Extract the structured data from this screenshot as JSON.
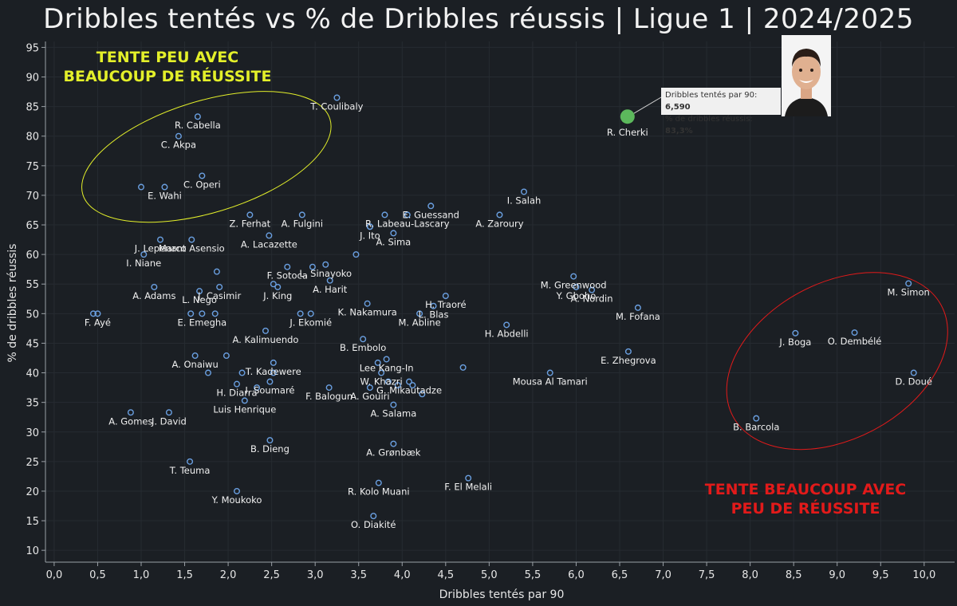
{
  "chart_data": {
    "type": "scatter",
    "title": "Dribbles tentés vs % de Dribbles réussis | Ligue 1 | 2024/2025",
    "xlabel": "Dribbles tentés par 90",
    "ylabel": "% de dribbles réussis",
    "xlim": [
      -0.1,
      10.35
    ],
    "ylim": [
      8,
      96
    ],
    "x_ticks": [
      "0,0",
      "0,5",
      "1,0",
      "1,5",
      "2,0",
      "2,5",
      "3,0",
      "3,5",
      "4,0",
      "4,5",
      "5,0",
      "5,5",
      "6,0",
      "6,5",
      "7,0",
      "7,5",
      "8,0",
      "8,5",
      "9,0",
      "9,5",
      "10,0"
    ],
    "y_ticks": [
      "10",
      "15",
      "20",
      "25",
      "30",
      "35",
      "40",
      "45",
      "50",
      "55",
      "60",
      "65",
      "70",
      "75",
      "80",
      "85",
      "90",
      "95"
    ],
    "grid": true,
    "highlight": {
      "name": "R. Cherki",
      "x": 6.59,
      "y": 83.3,
      "color": "#5cb85c",
      "callout_line1_label": "Dribbles tentés par 90: ",
      "callout_line1_value": "6,590",
      "callout_line2_label": "% de dribbles réussis: ",
      "callout_line2_value": "83,3%"
    },
    "zones": [
      {
        "label_line1": "TENTE PEU AVEC",
        "label_line2": "BEAUCOUP DE RÉUSSITE",
        "color": "#e3ef2a"
      },
      {
        "label_line1": "TENTE BEAUCOUP AVEC",
        "label_line2": "PEU DE RÉUSSITE",
        "color": "#e21a1a"
      }
    ],
    "marker_color": "#6a9fe0",
    "points": [
      {
        "name": "T. Coulibaly",
        "x": 3.25,
        "y": 86.5
      },
      {
        "name": "R. Cabella",
        "x": 1.65,
        "y": 83.3
      },
      {
        "name": "C. Akpa",
        "x": 1.43,
        "y": 80.0
      },
      {
        "name": "C. Operi",
        "x": 1.7,
        "y": 73.3
      },
      {
        "name": "",
        "x": 1.0,
        "y": 71.4
      },
      {
        "name": "E. Wahi",
        "x": 1.27,
        "y": 71.4
      },
      {
        "name": "Z. Ferhat",
        "x": 2.25,
        "y": 66.7
      },
      {
        "name": "A. Fulgini",
        "x": 2.85,
        "y": 66.7
      },
      {
        "name": "E. Guessand",
        "x": 4.33,
        "y": 68.2
      },
      {
        "name": "I. Salah",
        "x": 5.4,
        "y": 70.6
      },
      {
        "name": "",
        "x": 3.63,
        "y": 64.7
      },
      {
        "name": "",
        "x": 3.8,
        "y": 66.7
      },
      {
        "name": "R. Labeau-Lascary",
        "x": 4.06,
        "y": 66.7
      },
      {
        "name": "A. Zaroury",
        "x": 5.12,
        "y": 66.7
      },
      {
        "name": "J. Ito",
        "x": 3.63,
        "y": 64.7
      },
      {
        "name": "A. Sima",
        "x": 3.9,
        "y": 63.6
      },
      {
        "name": "A. Lacazette",
        "x": 2.47,
        "y": 63.2
      },
      {
        "name": "J. Lepenant",
        "x": 1.22,
        "y": 62.5
      },
      {
        "name": "Marco Asensio",
        "x": 1.58,
        "y": 62.5
      },
      {
        "name": "I. Niane",
        "x": 1.03,
        "y": 60.0
      },
      {
        "name": "",
        "x": 3.47,
        "y": 60.0
      },
      {
        "name": "F. Sotoca",
        "x": 2.68,
        "y": 57.9
      },
      {
        "name": "",
        "x": 2.97,
        "y": 57.9
      },
      {
        "name": "L. Sinayoko",
        "x": 3.12,
        "y": 58.3
      },
      {
        "name": "M. Greenwood",
        "x": 5.97,
        "y": 56.3
      },
      {
        "name": "",
        "x": 1.87,
        "y": 57.1
      },
      {
        "name": "A. Harit",
        "x": 3.17,
        "y": 55.6
      },
      {
        "name": "",
        "x": 2.52,
        "y": 55.0
      },
      {
        "name": "J. Casimir",
        "x": 1.9,
        "y": 54.5
      },
      {
        "name": "J. King",
        "x": 2.57,
        "y": 54.5
      },
      {
        "name": "A. Adams",
        "x": 1.15,
        "y": 54.5
      },
      {
        "name": "Y. Gboho",
        "x": 6.0,
        "y": 54.5
      },
      {
        "name": "A. Nordin",
        "x": 6.18,
        "y": 54.0
      },
      {
        "name": "M. Simon",
        "x": 9.82,
        "y": 55.1
      },
      {
        "name": "L. Nego",
        "x": 1.67,
        "y": 53.8
      },
      {
        "name": "H. Traoré",
        "x": 4.5,
        "y": 53.0
      },
      {
        "name": "K. Nakamura",
        "x": 3.6,
        "y": 51.7
      },
      {
        "name": "L. Blas",
        "x": 4.36,
        "y": 51.3
      },
      {
        "name": "M. Fofana",
        "x": 6.71,
        "y": 51.0
      },
      {
        "name": "",
        "x": 0.45,
        "y": 50.0
      },
      {
        "name": "F. Ayé",
        "x": 0.5,
        "y": 50.0
      },
      {
        "name": "",
        "x": 1.57,
        "y": 50.0
      },
      {
        "name": "E. Emegha",
        "x": 1.7,
        "y": 50.0
      },
      {
        "name": "",
        "x": 1.85,
        "y": 50.0
      },
      {
        "name": "",
        "x": 2.83,
        "y": 50.0
      },
      {
        "name": "J. Ekomié",
        "x": 2.95,
        "y": 50.0
      },
      {
        "name": "M. Abline",
        "x": 4.2,
        "y": 50.0
      },
      {
        "name": "H. Abdelli",
        "x": 5.2,
        "y": 48.1
      },
      {
        "name": "A. Kalimuendo",
        "x": 2.43,
        "y": 47.1
      },
      {
        "name": "J. Boga",
        "x": 8.52,
        "y": 46.7
      },
      {
        "name": "O. Dembélé",
        "x": 9.2,
        "y": 46.8
      },
      {
        "name": "B. Embolo",
        "x": 3.55,
        "y": 45.7
      },
      {
        "name": "E. Zhegrova",
        "x": 6.6,
        "y": 43.6
      },
      {
        "name": "A. Onaiwu",
        "x": 1.62,
        "y": 42.9
      },
      {
        "name": "",
        "x": 1.98,
        "y": 42.9
      },
      {
        "name": "Lee Kang-In",
        "x": 3.82,
        "y": 42.3
      },
      {
        "name": "",
        "x": 3.72,
        "y": 41.7
      },
      {
        "name": "T. Kadewere",
        "x": 2.52,
        "y": 41.7
      },
      {
        "name": "",
        "x": 4.7,
        "y": 40.9
      },
      {
        "name": "W. Khazri",
        "x": 3.76,
        "y": 40.0
      },
      {
        "name": "",
        "x": 1.77,
        "y": 40.0
      },
      {
        "name": "",
        "x": 2.16,
        "y": 40.0
      },
      {
        "name": "",
        "x": 2.52,
        "y": 40.0
      },
      {
        "name": "Mousa Al Tamari",
        "x": 5.7,
        "y": 40.0
      },
      {
        "name": "D. Doué",
        "x": 9.88,
        "y": 40.0
      },
      {
        "name": "G. Mikautadze",
        "x": 4.08,
        "y": 38.5
      },
      {
        "name": "H. Diarra",
        "x": 2.1,
        "y": 38.1
      },
      {
        "name": "I. Soumaré",
        "x": 2.48,
        "y": 38.5
      },
      {
        "name": "",
        "x": 3.84,
        "y": 38.5
      },
      {
        "name": "",
        "x": 3.95,
        "y": 37.9
      },
      {
        "name": "",
        "x": 4.12,
        "y": 37.9
      },
      {
        "name": "",
        "x": 2.33,
        "y": 37.5
      },
      {
        "name": "F. Balogun",
        "x": 3.16,
        "y": 37.5
      },
      {
        "name": "A. Gouiri",
        "x": 3.63,
        "y": 37.5
      },
      {
        "name": "",
        "x": 4.23,
        "y": 36.4
      },
      {
        "name": "Luis Henrique",
        "x": 2.19,
        "y": 35.3
      },
      {
        "name": "A. Salama",
        "x": 3.9,
        "y": 34.6
      },
      {
        "name": "A. Gomes",
        "x": 0.88,
        "y": 33.3
      },
      {
        "name": "J. David",
        "x": 1.32,
        "y": 33.3
      },
      {
        "name": "B. Barcola",
        "x": 8.07,
        "y": 32.3
      },
      {
        "name": "B. Dieng",
        "x": 2.48,
        "y": 28.6
      },
      {
        "name": "A. Grønbæk",
        "x": 3.9,
        "y": 28.0
      },
      {
        "name": "T. Teuma",
        "x": 1.56,
        "y": 25.0
      },
      {
        "name": "F. El Melali",
        "x": 4.76,
        "y": 22.2
      },
      {
        "name": "R. Kolo Muani",
        "x": 3.73,
        "y": 21.4
      },
      {
        "name": "Y. Moukoko",
        "x": 2.1,
        "y": 20.0
      },
      {
        "name": "O. Diakité",
        "x": 3.67,
        "y": 15.8
      }
    ]
  }
}
